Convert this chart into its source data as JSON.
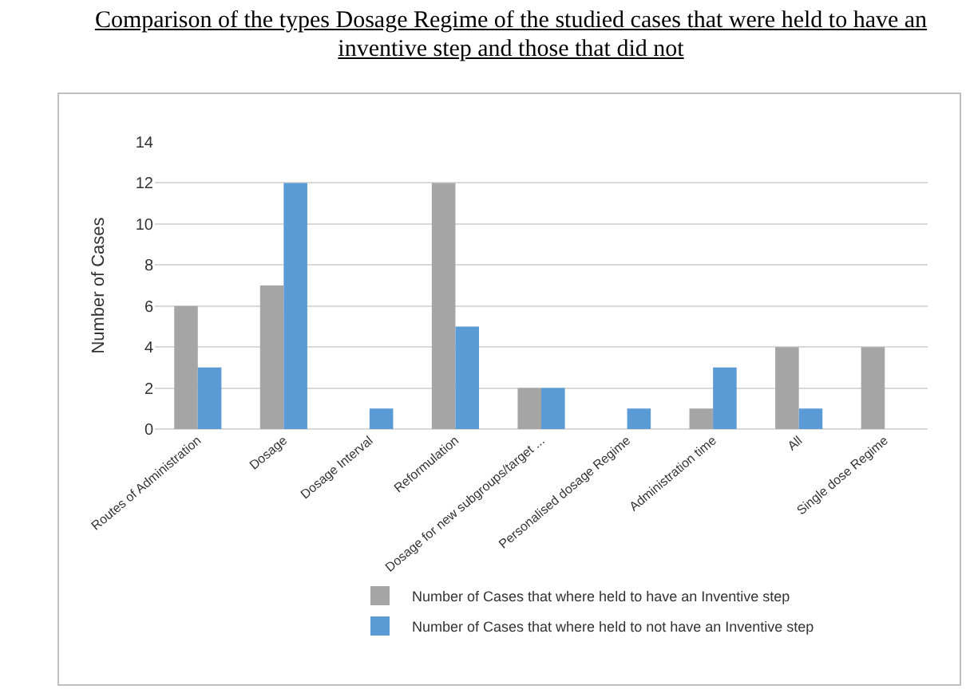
{
  "chart_data": {
    "type": "bar",
    "title": "Comparison of the types Dosage Regime of the studied cases that were held to have an inventive step and those that did not",
    "ylabel": "Number of Cases",
    "categories": [
      "Routes of Administration",
      "Dosage",
      "Dosage Interval",
      "Reformulation",
      "Dosage for new subgroups/target ...",
      "Personalised dosage Regime",
      "Administration time",
      "All",
      "Single dose Regime"
    ],
    "series": [
      {
        "name": "Number of Cases that where held to have an Inventive step",
        "color": "#a5a5a5",
        "values": [
          6,
          7,
          0,
          12,
          2,
          0,
          1,
          4,
          4
        ]
      },
      {
        "name": "Number of Cases that where held to not have an Inventive step",
        "color": "#5b9bd5",
        "values": [
          3,
          12,
          1,
          5,
          2,
          1,
          3,
          1,
          0
        ]
      }
    ],
    "ylim": [
      0,
      14
    ],
    "yticks": [
      0,
      2,
      4,
      6,
      8,
      10,
      12,
      14
    ],
    "grid": "y",
    "legend": "bottom"
  }
}
